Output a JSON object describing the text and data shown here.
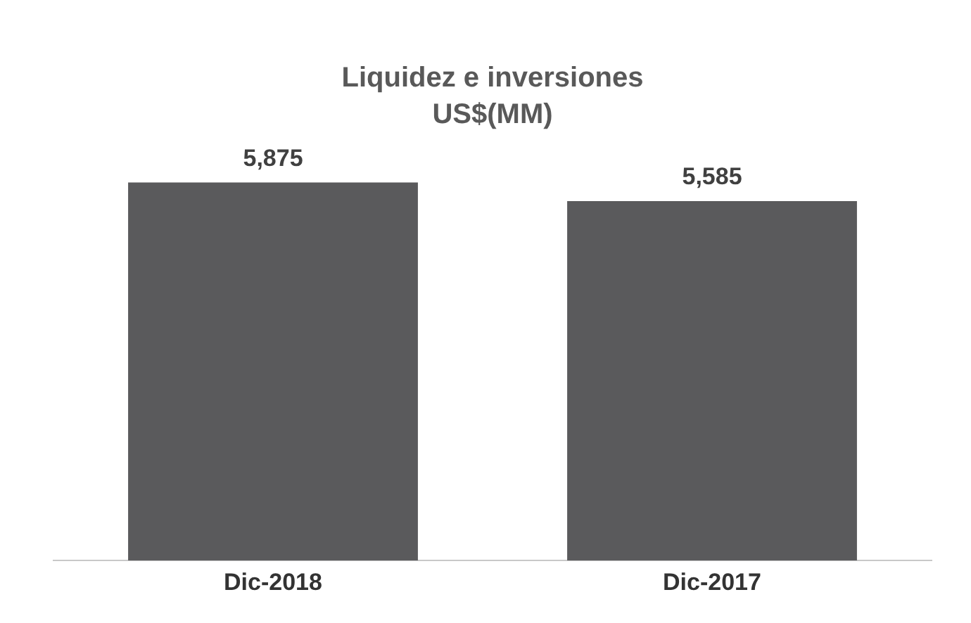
{
  "chart_data": {
    "type": "bar",
    "title": "Liquidez e inversiones",
    "subtitle": "US$(MM)",
    "categories": [
      "Dic-2018",
      "Dic-2017"
    ],
    "values": [
      5875,
      5585
    ],
    "color": "#5a5a5c",
    "value_labels": [
      "5,875",
      "5,585"
    ],
    "grid": false,
    "legend": false
  }
}
